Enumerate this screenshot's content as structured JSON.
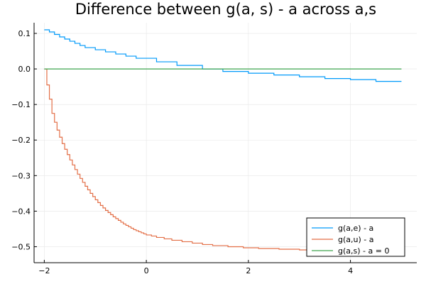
{
  "chart_data": {
    "type": "line",
    "title": "Difference between g(a, s) - a across a,s",
    "xlabel": "",
    "ylabel": "",
    "xlim": [
      -2.2,
      5.3
    ],
    "ylim": [
      -0.545,
      0.13
    ],
    "x_ticks": [
      -2,
      0,
      2,
      4
    ],
    "x_tick_labels": [
      "−2",
      "0",
      "2",
      "4"
    ],
    "y_ticks": [
      0.1,
      0.0,
      -0.1,
      -0.2,
      -0.3,
      -0.4,
      -0.5
    ],
    "y_tick_labels": [
      "0.1",
      "0.0",
      "−0.1",
      "−0.2",
      "−0.3",
      "−0.4",
      "−0.5"
    ],
    "grid": true,
    "legend_position": "bottom-right",
    "series": [
      {
        "name": "g(a,e) - a",
        "color": "#009AFA",
        "step": true,
        "x": [
          -2.0,
          -1.9,
          -1.8,
          -1.7,
          -1.6,
          -1.5,
          -1.4,
          -1.3,
          -1.2,
          -1.0,
          -0.8,
          -0.6,
          -0.4,
          -0.2,
          0.2,
          0.6,
          1.1,
          1.5,
          2.0,
          2.5,
          3.0,
          3.5,
          4.0,
          4.5,
          5.0
        ],
        "y": [
          0.11,
          0.104,
          0.097,
          0.09,
          0.084,
          0.078,
          0.072,
          0.066,
          0.06,
          0.054,
          0.048,
          0.042,
          0.036,
          0.03,
          0.02,
          0.01,
          0.0,
          -0.007,
          -0.012,
          -0.017,
          -0.022,
          -0.027,
          -0.03,
          -0.035,
          -0.035
        ]
      },
      {
        "name": "g(a,u) - a",
        "color": "#E36F47",
        "step": true,
        "x": [
          -2.0,
          -1.95,
          -1.9,
          -1.85,
          -1.8,
          -1.75,
          -1.7,
          -1.65,
          -1.6,
          -1.55,
          -1.5,
          -1.45,
          -1.4,
          -1.35,
          -1.3,
          -1.25,
          -1.2,
          -1.15,
          -1.1,
          -1.05,
          -1.0,
          -0.95,
          -0.9,
          -0.85,
          -0.8,
          -0.75,
          -0.7,
          -0.65,
          -0.6,
          -0.55,
          -0.5,
          -0.45,
          -0.4,
          -0.35,
          -0.3,
          -0.25,
          -0.2,
          -0.15,
          -0.1,
          -0.05,
          0.0,
          0.1,
          0.2,
          0.35,
          0.5,
          0.7,
          0.9,
          1.1,
          1.3,
          1.6,
          1.9,
          2.2,
          2.6,
          3.0,
          3.5,
          4.0,
          4.5,
          5.0
        ],
        "y": [
          0.0,
          -0.045,
          -0.085,
          -0.125,
          -0.15,
          -0.172,
          -0.192,
          -0.21,
          -0.226,
          -0.241,
          -0.256,
          -0.27,
          -0.283,
          -0.296,
          -0.308,
          -0.319,
          -0.33,
          -0.34,
          -0.35,
          -0.359,
          -0.368,
          -0.376,
          -0.384,
          -0.391,
          -0.398,
          -0.404,
          -0.41,
          -0.416,
          -0.421,
          -0.426,
          -0.431,
          -0.436,
          -0.44,
          -0.444,
          -0.448,
          -0.452,
          -0.455,
          -0.458,
          -0.461,
          -0.464,
          -0.467,
          -0.47,
          -0.474,
          -0.478,
          -0.482,
          -0.486,
          -0.49,
          -0.494,
          -0.497,
          -0.5,
          -0.503,
          -0.505,
          -0.507,
          -0.509,
          -0.511,
          -0.513,
          -0.515,
          -0.515
        ]
      },
      {
        "name": "g(a,s) - a = 0",
        "color": "#3EA44E",
        "step": false,
        "x": [
          -2.0,
          5.0
        ],
        "y": [
          0.0,
          0.0
        ]
      }
    ]
  }
}
